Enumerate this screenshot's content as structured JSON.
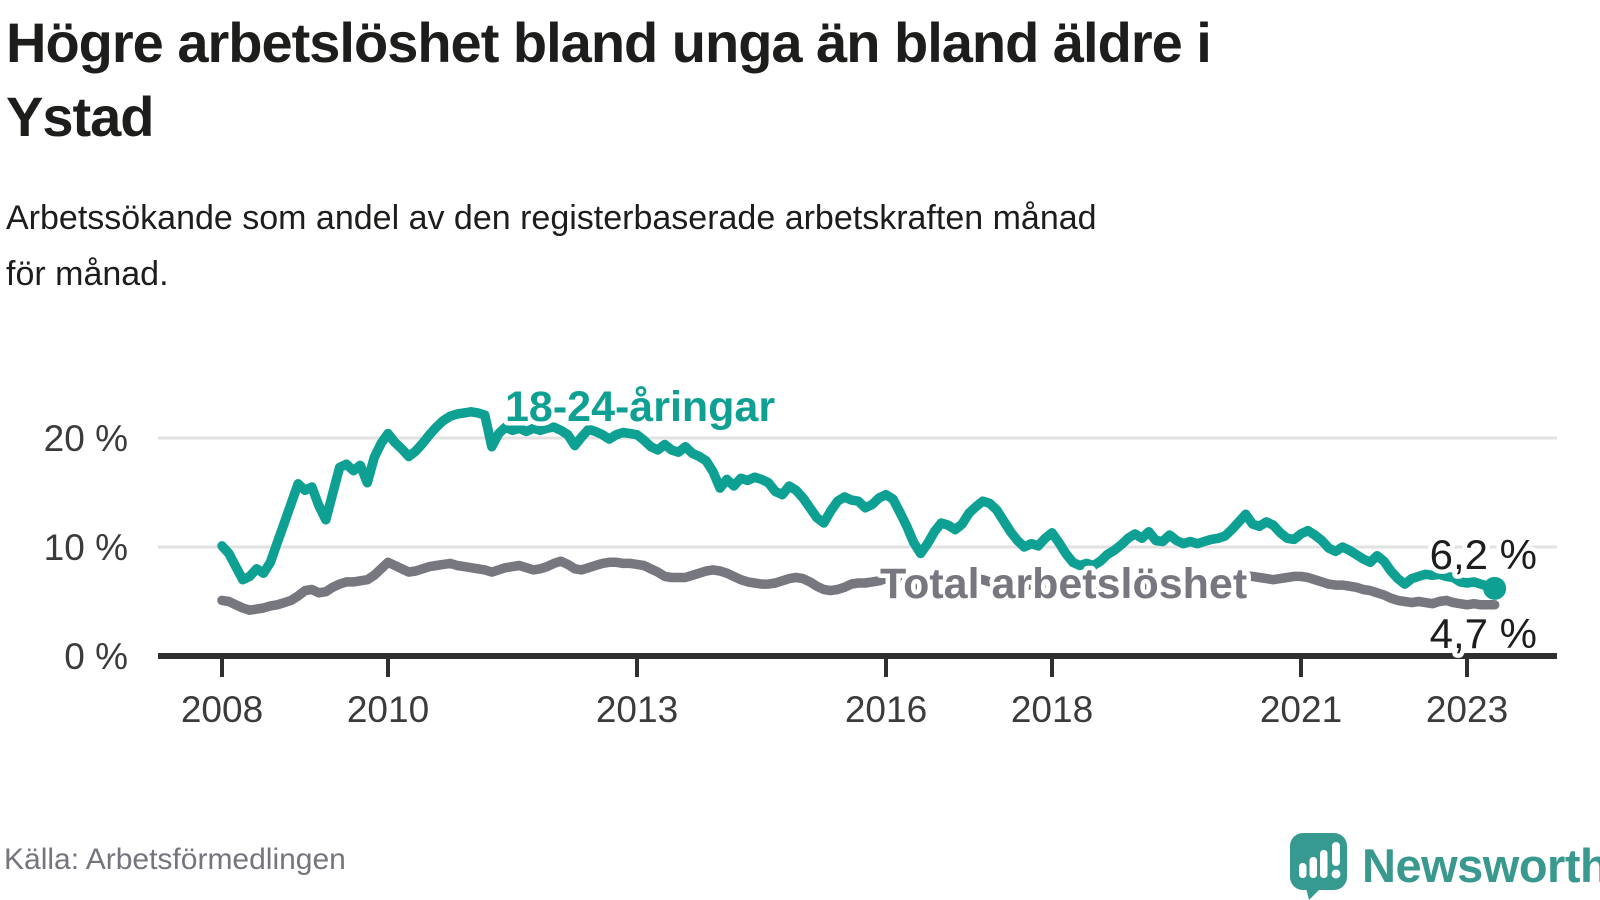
{
  "title": {
    "lines": [
      "Högre arbetslöshet bland unga än bland äldre i",
      "Ystad"
    ]
  },
  "subtitle": {
    "lines": [
      "Arbetssökande som andel av den registerbaserade arbetskraften månad",
      "för månad."
    ]
  },
  "source": "Källa: Arbetsförmedlingen",
  "logo": {
    "brand": "Newsworthy"
  },
  "colors": {
    "youth_line": "#0ea093",
    "total_line": "#77777f",
    "grid": "#e2e2e2",
    "axis": "#2f2f2f",
    "tick_text": "#3b3b3b",
    "annotation_text": "#1d1d1b",
    "logo_teal": "#379a91",
    "source_text": "#75757d"
  },
  "chart_data": {
    "type": "line",
    "title": "Högre arbetslöshet bland unga än bland äldre i Ystad",
    "subtitle": "Arbetssökande som andel av den registerbaserade arbetskraften månad för månad.",
    "x_unit": "month",
    "x_start": "2008-01",
    "x_end": "2023-05",
    "xlabel": "",
    "ylabel": "",
    "ylim": [
      0,
      24.5
    ],
    "grid": "horizontal-only",
    "legend_position": "inline-labels",
    "yticks": [
      {
        "value": 0,
        "label": "0 %"
      },
      {
        "value": 10,
        "label": "10 %"
      },
      {
        "value": 20,
        "label": "20 %"
      }
    ],
    "xticks": [
      {
        "value": 2008,
        "label": "2008"
      },
      {
        "value": 2010,
        "label": "2010"
      },
      {
        "value": 2013,
        "label": "2013"
      },
      {
        "value": 2016,
        "label": "2016"
      },
      {
        "value": 2018,
        "label": "2018"
      },
      {
        "value": 2021,
        "label": "2021"
      },
      {
        "value": 2023,
        "label": "2023"
      }
    ],
    "series": [
      {
        "name": "18-24-åringar",
        "color": "#0ea093",
        "end_label": "6,2 %",
        "end_value": 6.2,
        "end_marker": true,
        "values": [
          10.1,
          9.4,
          8.2,
          7.0,
          7.3,
          8.0,
          7.6,
          8.6,
          10.4,
          12.2,
          14.0,
          15.8,
          15.2,
          15.5,
          13.8,
          12.5,
          14.9,
          17.3,
          17.6,
          17.0,
          17.5,
          15.9,
          18.2,
          19.5,
          20.4,
          19.6,
          19.0,
          18.3,
          18.8,
          19.5,
          20.3,
          21.0,
          21.6,
          22.0,
          22.2,
          22.3,
          22.4,
          22.3,
          22.1,
          19.2,
          20.4,
          21.0,
          20.7,
          20.9,
          20.6,
          20.9,
          20.7,
          20.9,
          21.0,
          20.7,
          20.3,
          19.3,
          20.1,
          20.8,
          20.6,
          20.3,
          19.9,
          20.3,
          20.5,
          20.4,
          20.3,
          19.8,
          19.2,
          18.9,
          19.4,
          18.9,
          18.7,
          19.2,
          18.6,
          18.3,
          17.9,
          16.9,
          15.4,
          16.2,
          15.6,
          16.3,
          16.1,
          16.4,
          16.2,
          15.9,
          15.1,
          14.8,
          15.6,
          15.2,
          14.5,
          13.6,
          12.7,
          12.2,
          13.3,
          14.2,
          14.6,
          14.3,
          14.2,
          13.6,
          13.9,
          14.5,
          14.8,
          14.4,
          13.2,
          11.9,
          10.4,
          9.4,
          10.3,
          11.4,
          12.2,
          12.0,
          11.6,
          12.1,
          13.1,
          13.7,
          14.2,
          14.0,
          13.4,
          12.4,
          11.4,
          10.6,
          10.0,
          10.3,
          10.1,
          10.8,
          11.3,
          10.4,
          9.4,
          8.6,
          8.3,
          8.5,
          8.3,
          8.7,
          9.3,
          9.7,
          10.2,
          10.8,
          11.2,
          10.8,
          11.4,
          10.6,
          10.5,
          11.1,
          10.6,
          10.3,
          10.5,
          10.3,
          10.5,
          10.7,
          10.8,
          11.0,
          11.6,
          12.3,
          13.0,
          12.1,
          11.9,
          12.3,
          12.0,
          11.3,
          10.8,
          10.7,
          11.2,
          11.5,
          11.1,
          10.6,
          9.9,
          9.6,
          10.0,
          9.7,
          9.3,
          8.9,
          8.6,
          9.2,
          8.7,
          7.8,
          7.1,
          6.6,
          7.1,
          7.3,
          7.5,
          7.4,
          7.5,
          7.3,
          7.2,
          6.8,
          6.7,
          6.8,
          6.6,
          6.4,
          6.2
        ]
      },
      {
        "name": "Total arbetslöshet",
        "color": "#77777f",
        "end_label": "4,7 %",
        "end_value": 4.7,
        "end_marker": false,
        "values": [
          5.1,
          5.0,
          4.7,
          4.4,
          4.2,
          4.3,
          4.4,
          4.6,
          4.7,
          4.9,
          5.1,
          5.5,
          6.0,
          6.1,
          5.8,
          5.9,
          6.3,
          6.6,
          6.8,
          6.8,
          6.9,
          7.0,
          7.4,
          8.0,
          8.6,
          8.3,
          8.0,
          7.7,
          7.8,
          8.0,
          8.2,
          8.3,
          8.4,
          8.5,
          8.3,
          8.2,
          8.1,
          8.0,
          7.9,
          7.7,
          7.9,
          8.1,
          8.2,
          8.3,
          8.1,
          7.9,
          8.0,
          8.2,
          8.5,
          8.7,
          8.4,
          8.0,
          7.9,
          8.1,
          8.3,
          8.5,
          8.6,
          8.6,
          8.5,
          8.5,
          8.4,
          8.3,
          8.0,
          7.7,
          7.3,
          7.2,
          7.2,
          7.2,
          7.4,
          7.6,
          7.8,
          7.9,
          7.8,
          7.6,
          7.3,
          7.0,
          6.8,
          6.7,
          6.6,
          6.6,
          6.7,
          6.9,
          7.1,
          7.2,
          7.1,
          6.8,
          6.4,
          6.1,
          6.0,
          6.1,
          6.3,
          6.6,
          6.7,
          6.7,
          6.8,
          6.9,
          7.1,
          7.0,
          6.8,
          6.6,
          6.5,
          6.4,
          6.6,
          6.8,
          6.9,
          6.8,
          6.8,
          6.9,
          7.0,
          7.1,
          7.0,
          6.8,
          6.6,
          6.5,
          6.4,
          6.4,
          6.5,
          6.5,
          6.6,
          6.7,
          6.8,
          6.7,
          6.5,
          6.3,
          6.1,
          6.0,
          6.1,
          6.2,
          6.3,
          6.3,
          6.4,
          6.5,
          6.6,
          6.5,
          6.4,
          6.3,
          6.2,
          6.3,
          6.4,
          6.4,
          6.4,
          6.5,
          6.5,
          6.6,
          6.7,
          6.7,
          6.9,
          7.2,
          7.3,
          7.3,
          7.2,
          7.1,
          7.0,
          7.1,
          7.2,
          7.3,
          7.3,
          7.2,
          7.0,
          6.8,
          6.6,
          6.5,
          6.5,
          6.4,
          6.3,
          6.1,
          6.0,
          5.8,
          5.6,
          5.3,
          5.1,
          5.0,
          4.9,
          5.0,
          4.9,
          4.8,
          5.0,
          5.1,
          4.9,
          4.8,
          4.7,
          4.8,
          4.7,
          4.7,
          4.7
        ]
      }
    ]
  }
}
